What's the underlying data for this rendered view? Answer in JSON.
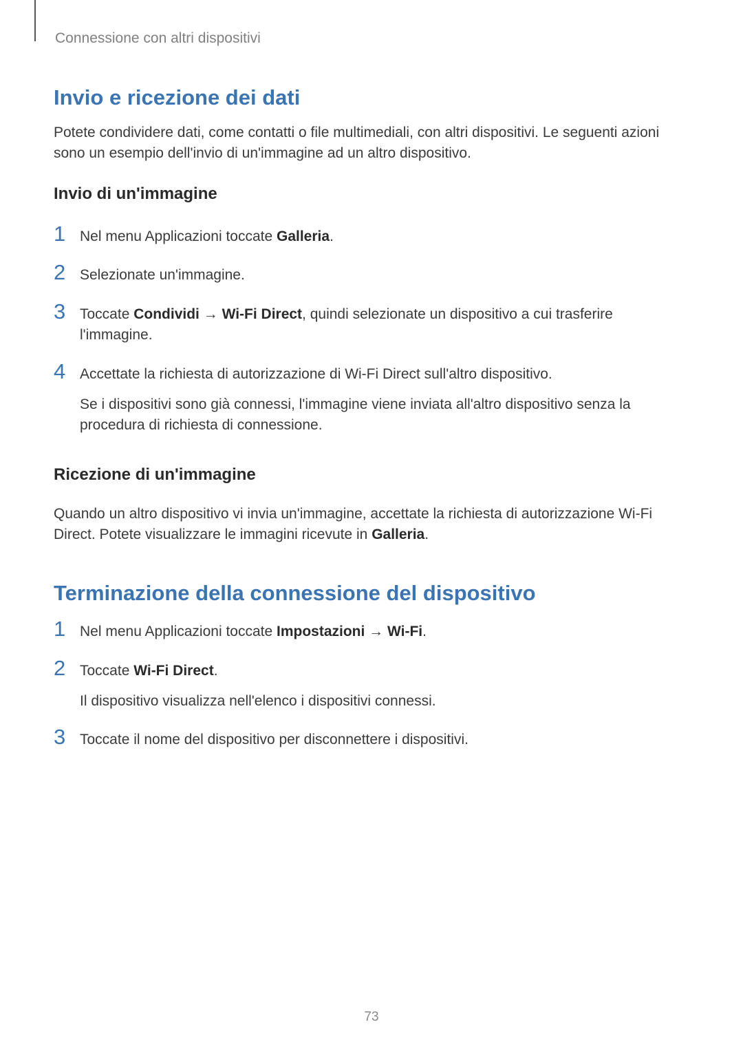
{
  "colors": {
    "heading_blue": "#3a74b3",
    "body_text": "#3a3a3a",
    "header_gray": "#808080",
    "page_bg": "#ffffff"
  },
  "typography": {
    "header_fontsize": 21,
    "section_title_fontsize": 31,
    "sub_heading_fontsize": 24,
    "body_fontsize": 21,
    "num_marker_fontsize": 31,
    "page_num_fontsize": 19
  },
  "header": {
    "breadcrumb": "Connessione con altri dispositivi"
  },
  "section1": {
    "title": "Invio e ricezione dei dati",
    "intro": "Potete condividere dati, come contatti o file multimediali, con altri dispositivi. Le seguenti azioni sono un esempio dell'invio di un'immagine ad un altro dispositivo.",
    "sub1": {
      "heading": "Invio di un'immagine",
      "steps": {
        "n1": "1",
        "s1_pre": "Nel menu Applicazioni toccate ",
        "s1_b": "Galleria",
        "s1_post": ".",
        "n2": "2",
        "s2": "Selezionate un'immagine.",
        "n3": "3",
        "s3_pre": "Toccate ",
        "s3_b1": "Condividi",
        "s3_arrow": " → ",
        "s3_b2": "Wi-Fi Direct",
        "s3_post": ", quindi selezionate un dispositivo a cui trasferire l'immagine.",
        "n4": "4",
        "s4_line1": "Accettate la richiesta di autorizzazione di Wi-Fi Direct sull'altro dispositivo.",
        "s4_line2": "Se i dispositivi sono già connessi, l'immagine viene inviata all'altro dispositivo senza la procedura di richiesta di connessione."
      }
    },
    "sub2": {
      "heading": "Ricezione di un'immagine",
      "text_pre": "Quando un altro dispositivo vi invia un'immagine, accettate la richiesta di autorizzazione Wi-Fi Direct. Potete visualizzare le immagini ricevute in ",
      "text_b": "Galleria",
      "text_post": "."
    }
  },
  "section2": {
    "title": "Terminazione della connessione del dispositivo",
    "steps": {
      "n1": "1",
      "s1_pre": "Nel menu Applicazioni toccate ",
      "s1_b1": "Impostazioni",
      "s1_arrow": " → ",
      "s1_b2": "Wi-Fi",
      "s1_post": ".",
      "n2": "2",
      "s2_pre": "Toccate ",
      "s2_b": "Wi-Fi Direct",
      "s2_post": ".",
      "s2_line2": "Il dispositivo visualizza nell'elenco i dispositivi connessi.",
      "n3": "3",
      "s3": "Toccate il nome del dispositivo per disconnettere i dispositivi."
    }
  },
  "page_number": "73"
}
